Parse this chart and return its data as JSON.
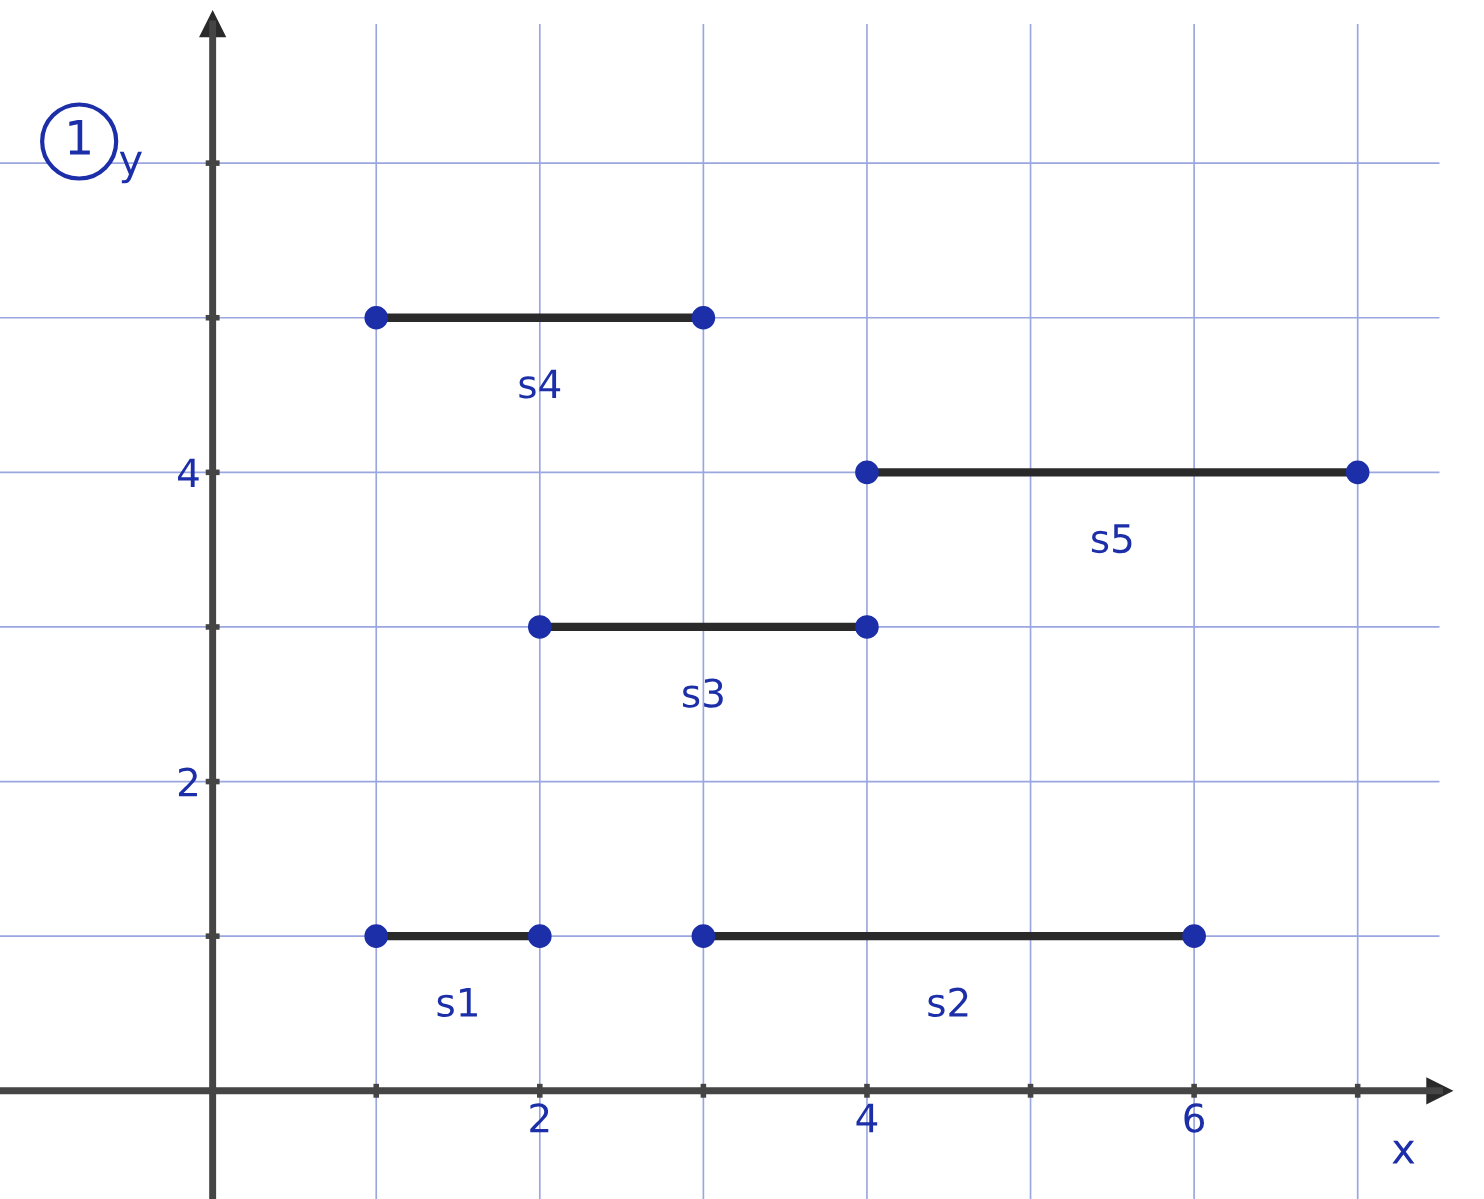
{
  "chart_data": {
    "type": "line",
    "xlabel": "x",
    "ylabel": "y",
    "annotations": [
      "1"
    ],
    "series": [
      {
        "name": "s1",
        "color": "#2a2a2a",
        "x": [
          1,
          2
        ],
        "values": [
          1,
          1
        ]
      },
      {
        "name": "s2",
        "color": "#2a2a2a",
        "x": [
          3,
          6
        ],
        "values": [
          1,
          1
        ]
      },
      {
        "name": "s3",
        "color": "#2a2a2a",
        "x": [
          2,
          4
        ],
        "values": [
          3,
          3
        ]
      },
      {
        "name": "s4",
        "color": "#2a2a2a",
        "x": [
          1,
          3
        ],
        "values": [
          5,
          5
        ]
      },
      {
        "name": "s5",
        "color": "#2a2a2a",
        "x": [
          4,
          7
        ],
        "values": [
          4,
          4
        ]
      }
    ],
    "xlim": [
      -1.3,
      7.5
    ],
    "ylim": [
      -0.7,
      6.9
    ],
    "xticks": [
      {
        "value": 0,
        "label": null
      },
      {
        "value": 1,
        "label": null
      },
      2,
      {
        "value": 3,
        "label": null
      },
      4,
      {
        "value": 5,
        "label": null
      },
      6,
      {
        "value": 7,
        "label": null
      }
    ],
    "yticks": [
      {
        "value": 0,
        "label": null
      },
      {
        "value": 1,
        "label": null
      },
      2,
      {
        "value": 3,
        "label": null
      },
      4,
      {
        "value": 5,
        "label": null
      },
      {
        "value": 6,
        "label": null
      }
    ],
    "grid": true,
    "marker": "circle",
    "line_style": "solid"
  }
}
